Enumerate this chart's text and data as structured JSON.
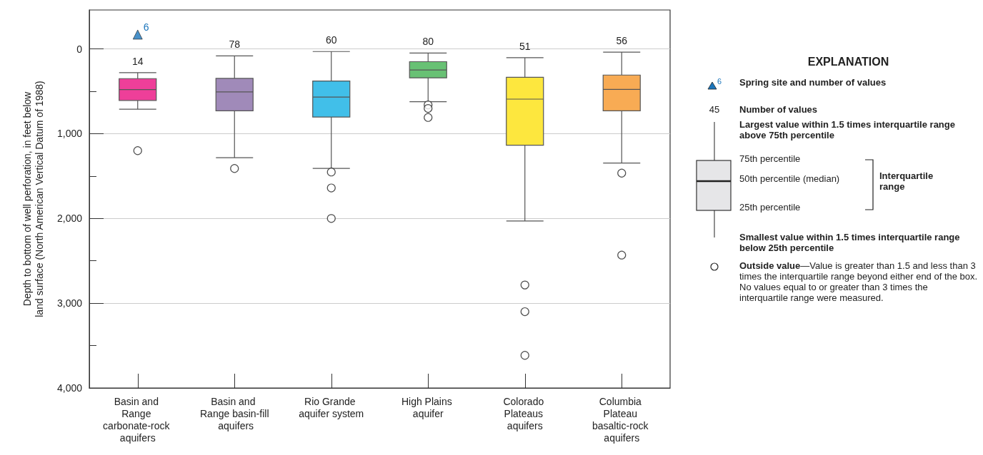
{
  "chart_data": {
    "type": "box",
    "ylabel": "Depth to bottom of well perforation, in feet below land surface (North American Vertical Datum of 1988)",
    "categories": [
      "Basin and Range carbonate-rock aquifers",
      "Basin and Range basin-fill aquifers",
      "Rio Grande aquifer system",
      "High Plains aquifer",
      "Colorado Plateaus aquifers",
      "Columbia Plateau basaltic-rock aquifers"
    ],
    "ylim": [
      4000,
      -460
    ],
    "yticks": [
      {
        "value": 0,
        "label": "0"
      },
      {
        "value": 500,
        "label": null
      },
      {
        "value": 1000,
        "label": "1,000"
      },
      {
        "value": 1500,
        "label": null
      },
      {
        "value": 2000,
        "label": "2,000"
      },
      {
        "value": 2500,
        "label": null
      },
      {
        "value": 3000,
        "label": "3,000"
      },
      {
        "value": 3500,
        "label": null
      },
      {
        "value": 4000,
        "label": "4,000"
      }
    ],
    "grid": "y",
    "series": [
      {
        "type": "box",
        "colors": [
          "#ee3f99",
          "#a08ab9",
          "#41bfe9",
          "#68c174",
          "#fde73e",
          "#f8ab54"
        ],
        "boxes": [
          {
            "low": 280,
            "q1": 350,
            "median": 480,
            "q3": 607,
            "high": 710,
            "outliers": [
              1200
            ]
          },
          {
            "low": 82,
            "q1": 347,
            "median": 507,
            "q3": 730,
            "high": 1283,
            "outliers": [
              1410
            ]
          },
          {
            "low": 30,
            "q1": 378,
            "median": 568,
            "q3": 803,
            "high": 1410,
            "outliers": [
              1452,
              1640,
              2000
            ]
          },
          {
            "low": 48,
            "q1": 150,
            "median": 248,
            "q3": 341,
            "high": 622,
            "outliers": [
              660,
              702,
              808
            ]
          },
          {
            "low": 102,
            "q1": 335,
            "median": 592,
            "q3": 1136,
            "high": 2030,
            "outliers": [
              2785,
              3100,
              3615
            ]
          },
          {
            "low": 37,
            "q1": 308,
            "median": 477,
            "q3": 730,
            "high": 1346,
            "outliers": [
              1465,
              2432
            ]
          }
        ]
      },
      {
        "type": "scatter",
        "x": [
          "Basin and Range carbonate-rock aquifers"
        ],
        "values": [
          -170
        ],
        "color": "#1b75bb",
        "marker": "triangle"
      }
    ],
    "legend_title": "EXPLANATION",
    "annotations": [
      "6",
      "Spring site and number of values",
      "45",
      "Number of values",
      "Largest value within 1.5 times interquartile range above 75th percentile",
      "75th percentile",
      "50th percentile (median)",
      "25th percentile",
      "Interquartile range",
      "Smallest value within 1.5 times interquartile range below 25th percentile",
      "Outside value",
      "—Value is greater than 1.5 and less than 3 times the interquartile range beyond either end of the box. No values equal to or greater than 3 times the interquartile range were measured.",
      "14",
      "78",
      "60",
      "80",
      "51",
      "56",
      {
        "text": "6",
        "x": "Basin and Range carbonate-rock aquifers",
        "y": -170
      }
    ]
  }
}
